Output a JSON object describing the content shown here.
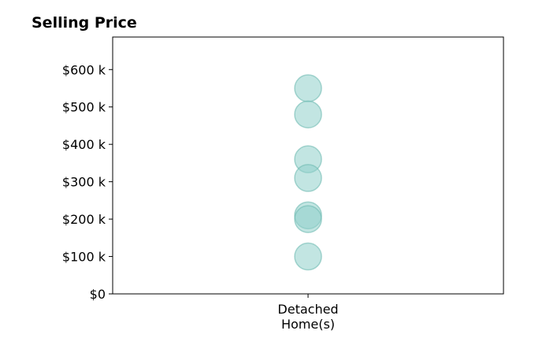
{
  "chart_data": {
    "type": "scatter",
    "title": "Selling Price",
    "xlabel": "",
    "ylabel": "",
    "categories": [
      [
        "Detached",
        "Home(s)"
      ]
    ],
    "series": [
      {
        "category_index": 0,
        "values": [
          550000,
          480000,
          360000,
          310000,
          210000,
          200000,
          100000
        ]
      }
    ],
    "ylim": [
      0,
      687000
    ],
    "y_ticks": [
      0,
      100000,
      200000,
      300000,
      400000,
      500000,
      600000
    ],
    "y_tick_labels": [
      "$0",
      "$100 k",
      "$200 k",
      "$300 k",
      "$400 k",
      "$500 k",
      "$600 k"
    ],
    "grid": false,
    "legend": "none",
    "colors": {
      "marker_fill": "#8fcfca",
      "marker_stroke": "#6fbab3",
      "axis": "#000000"
    }
  }
}
